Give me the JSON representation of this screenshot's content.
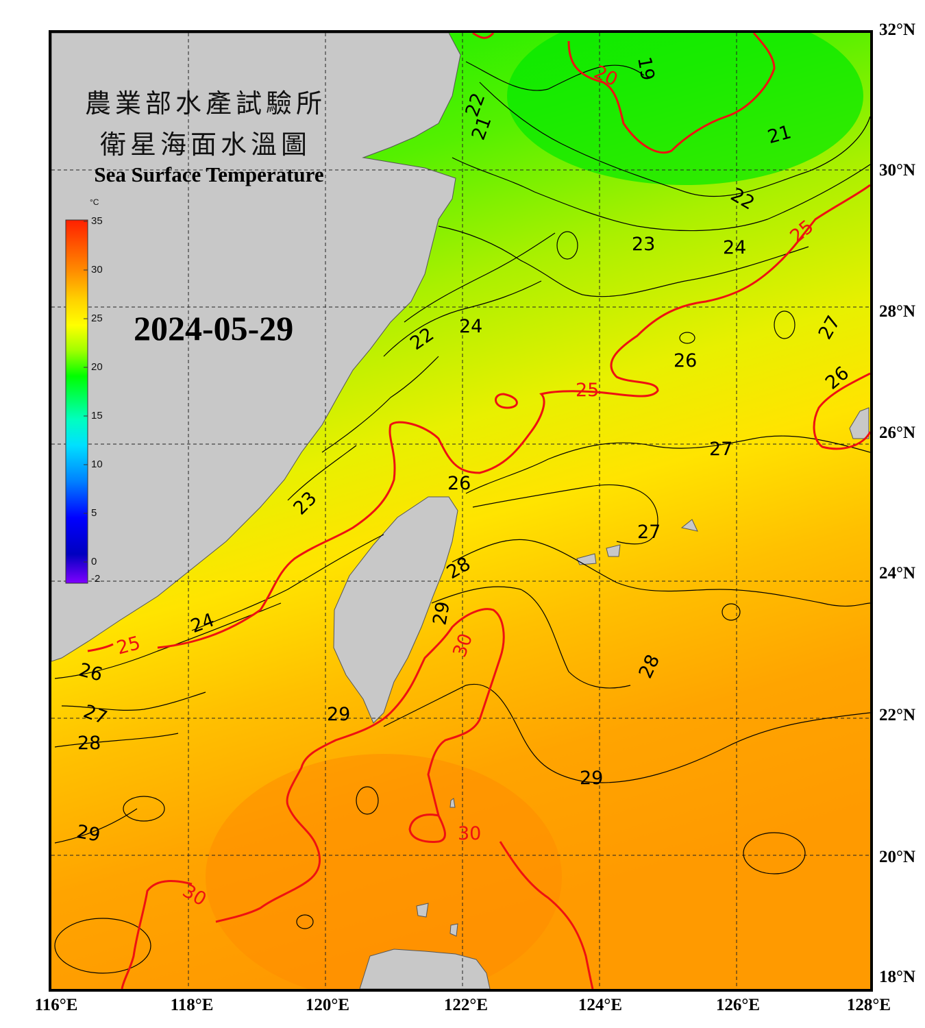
{
  "title": {
    "line1": "農業部水產試驗所",
    "line2": "衛星海面水溫圖",
    "english": "Sea Surface Temperature"
  },
  "date": "2024-05-29",
  "colorbar": {
    "unit": "°C",
    "min": -2,
    "max": 35,
    "ticks": [
      "35",
      "30",
      "25",
      "20",
      "15",
      "10",
      "5",
      "0",
      "-2"
    ],
    "colors": [
      "#ff2000",
      "#ff8c00",
      "#ffd200",
      "#ffff00",
      "#a0ff00",
      "#00ff00",
      "#00ffc0",
      "#00e0ff",
      "#0080ff",
      "#0000ff",
      "#0000c0",
      "#8000ff"
    ]
  },
  "axes": {
    "lat_labels": [
      "32°N",
      "30°N",
      "28°N",
      "26°N",
      "24°N",
      "22°N",
      "20°N",
      "18°N"
    ],
    "lon_labels": [
      "116°E",
      "118°E",
      "120°E",
      "122°E",
      "124°E",
      "126°E",
      "128°E"
    ],
    "lat_range": [
      18,
      32
    ],
    "lon_range": [
      116,
      128
    ]
  },
  "isotherm_labels": [
    "19",
    "20",
    "21",
    "22",
    "23",
    "24",
    "25",
    "26",
    "27",
    "28",
    "29",
    "30"
  ],
  "colors": {
    "land": "#c8c8c8",
    "cold_water": "#00ee00",
    "warm_water": "#ff9a00",
    "highlight_isotherm": "#ee1111",
    "frame": "#000000"
  }
}
